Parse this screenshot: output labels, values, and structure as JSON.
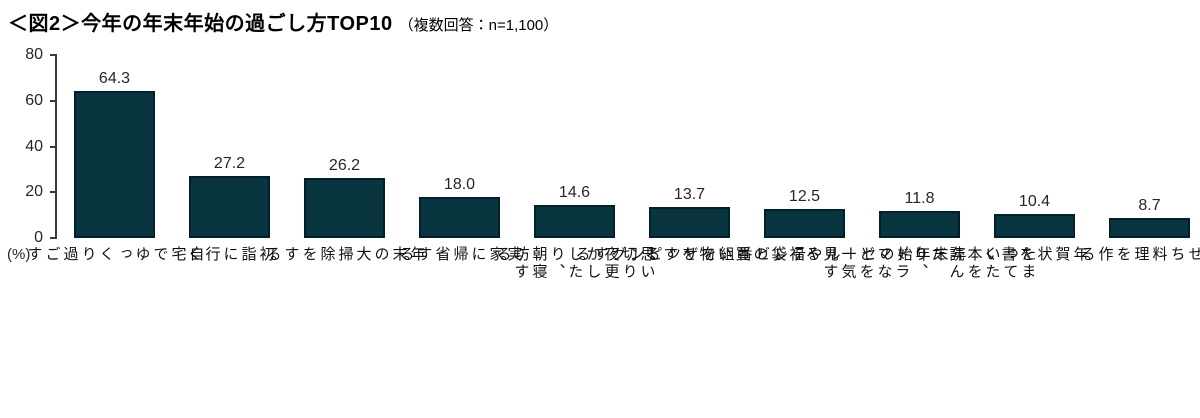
{
  "title": {
    "main": "＜図2＞今年の年末年始の過ごし方TOP10",
    "note": "（複数回答：n=1,100）"
  },
  "y_axis": {
    "unit": "(%)",
    "ticks": [
      "80",
      "60",
      "40",
      "20",
      "0"
    ]
  },
  "bars": [
    {
      "label": "自宅でゆっくり\n過ごす",
      "value": "64.3"
    },
    {
      "label": "初詣に行く",
      "value": "27.2"
    },
    {
      "label": "年末の\n大掃除をする",
      "value": "26.2"
    },
    {
      "label": "実家に\n帰省する",
      "value": "18.0"
    },
    {
      "label": "思い切り\n夜更かししたり、\n朝寝坊する",
      "value": "14.6"
    },
    {
      "label": "テレビ番組を\nザッピングする",
      "value": "13.7"
    },
    {
      "label": "年末年始のセールや\n福袋の買い物をする",
      "value": "12.5"
    },
    {
      "label": "たまっていた\n本を読んだり、\nドラマなどを\n一気見する",
      "value": "11.8"
    },
    {
      "label": "年賀状を書く",
      "value": "10.4"
    },
    {
      "label": "おせち料理を\n作る",
      "value": "8.7"
    }
  ],
  "chart_data": {
    "type": "bar",
    "title": "＜図2＞今年の年末年始の過ごし方TOP10（複数回答：n=1,100）",
    "categories": [
      "自宅でゆっくり過ごす",
      "初詣に行く",
      "年末の大掃除をする",
      "実家に帰省する",
      "思い切り夜更かししたり、朝寝坊する",
      "テレビ番組をザッピングする",
      "年末年始のセールや福袋の買い物をする",
      "たまっていた本を読んだり、ドラマなどを一気見する",
      "年賀状を書く",
      "おせち料理を作る"
    ],
    "values": [
      64.3,
      27.2,
      26.2,
      18.0,
      14.6,
      13.7,
      12.5,
      11.8,
      10.4,
      8.7
    ],
    "xlabel": "",
    "ylabel": "(%)",
    "ylim": [
      0,
      80
    ],
    "grid": false,
    "legend": false,
    "data_labels": true,
    "bar_color": "#093540",
    "bar_border_color": "#032028"
  },
  "colors": {
    "bar_fill": "#093540",
    "bar_border": "#032028",
    "axis": "#3a3a3a",
    "text": "#262626",
    "background": "#ffffff"
  }
}
